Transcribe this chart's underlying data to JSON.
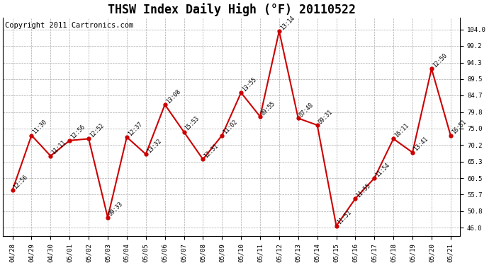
{
  "title": "THSW Index Daily High (°F) 20110522",
  "copyright": "Copyright 2011 Cartronics.com",
  "dates": [
    "04/28",
    "04/29",
    "04/30",
    "05/01",
    "05/02",
    "05/03",
    "05/04",
    "05/05",
    "05/06",
    "05/07",
    "05/08",
    "05/09",
    "05/10",
    "05/11",
    "05/12",
    "05/13",
    "05/14",
    "05/15",
    "05/16",
    "05/17",
    "05/18",
    "05/19",
    "05/20",
    "05/21"
  ],
  "values": [
    57.0,
    73.0,
    67.0,
    71.5,
    72.0,
    49.0,
    72.5,
    67.5,
    82.0,
    74.0,
    66.0,
    73.0,
    85.5,
    78.5,
    103.5,
    78.0,
    76.0,
    46.5,
    54.5,
    60.5,
    72.0,
    68.0,
    92.5,
    73.0
  ],
  "times": [
    "12:56",
    "11:30",
    "11:11",
    "12:56",
    "12:52",
    "09:33",
    "12:37",
    "13:32",
    "13:08",
    "15:53",
    "12:31",
    "11:02",
    "13:55",
    "09:55",
    "13:14",
    "07:48",
    "09:31",
    "11:51",
    "11:55",
    "11:54",
    "16:11",
    "13:41",
    "12:50",
    "16:51"
  ],
  "line_color": "#cc0000",
  "marker_color": "#cc0000",
  "bg_color": "#ffffff",
  "grid_color": "#aaaaaa",
  "yticks": [
    46.0,
    50.8,
    55.7,
    60.5,
    65.3,
    70.2,
    75.0,
    79.8,
    84.7,
    89.5,
    94.3,
    99.2,
    104.0
  ],
  "ylim": [
    43.5,
    107.5
  ],
  "title_fontsize": 12,
  "annotation_fontsize": 5.8,
  "tick_fontsize": 6.5,
  "copyright_fontsize": 7.5
}
